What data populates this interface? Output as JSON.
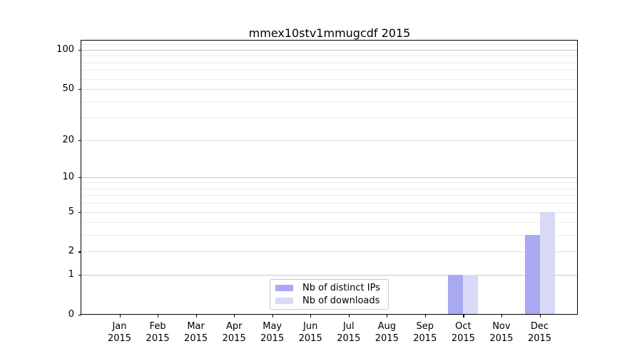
{
  "title": "mmex10stv1mmugcdf 2015",
  "chart_data": {
    "type": "bar",
    "title": "mmex10stv1mmugcdf 2015",
    "categories": [
      "Jan 2015",
      "Feb 2015",
      "Mar 2015",
      "Apr 2015",
      "May 2015",
      "Jun 2015",
      "Jul 2015",
      "Aug 2015",
      "Sep 2015",
      "Oct 2015",
      "Nov 2015",
      "Dec 2015"
    ],
    "series": [
      {
        "name": "Nb of distinct IPs",
        "color": "#a9a9f2",
        "values": [
          0,
          0,
          0,
          0,
          0,
          0,
          0,
          0,
          0,
          1,
          0,
          3
        ]
      },
      {
        "name": "Nb of downloads",
        "color": "#d8d8f7",
        "values": [
          0,
          0,
          0,
          0,
          0,
          0,
          0,
          0,
          0,
          1,
          0,
          5
        ]
      }
    ],
    "xlabel": "",
    "ylabel": "",
    "y_scale": "log1p",
    "y_ticks": [
      0,
      1,
      2,
      5,
      10,
      20,
      50,
      100
    ],
    "y_axis_range": [
      0,
      117.6
    ],
    "y_minor_gridlines": [
      3,
      4,
      6,
      7,
      8,
      9,
      30,
      40,
      60,
      70,
      80,
      90,
      110
    ],
    "y_mid_gridlines": [
      2,
      5,
      20,
      50
    ],
    "y_major_gridlines": [
      1,
      10,
      100
    ],
    "grid": "horizontal",
    "legend_position": "lower-center"
  },
  "colors": {
    "background": "#ffffff",
    "bar_distinct_ips": "#a9a9f2",
    "bar_downloads": "#d8d8f7",
    "grid_minor": "#ececec",
    "grid_mid": "#e3e3e3",
    "grid_major": "#c8c8c8",
    "spine": "#000000",
    "legend_border": "#c9c9c9",
    "text": "#000000"
  }
}
